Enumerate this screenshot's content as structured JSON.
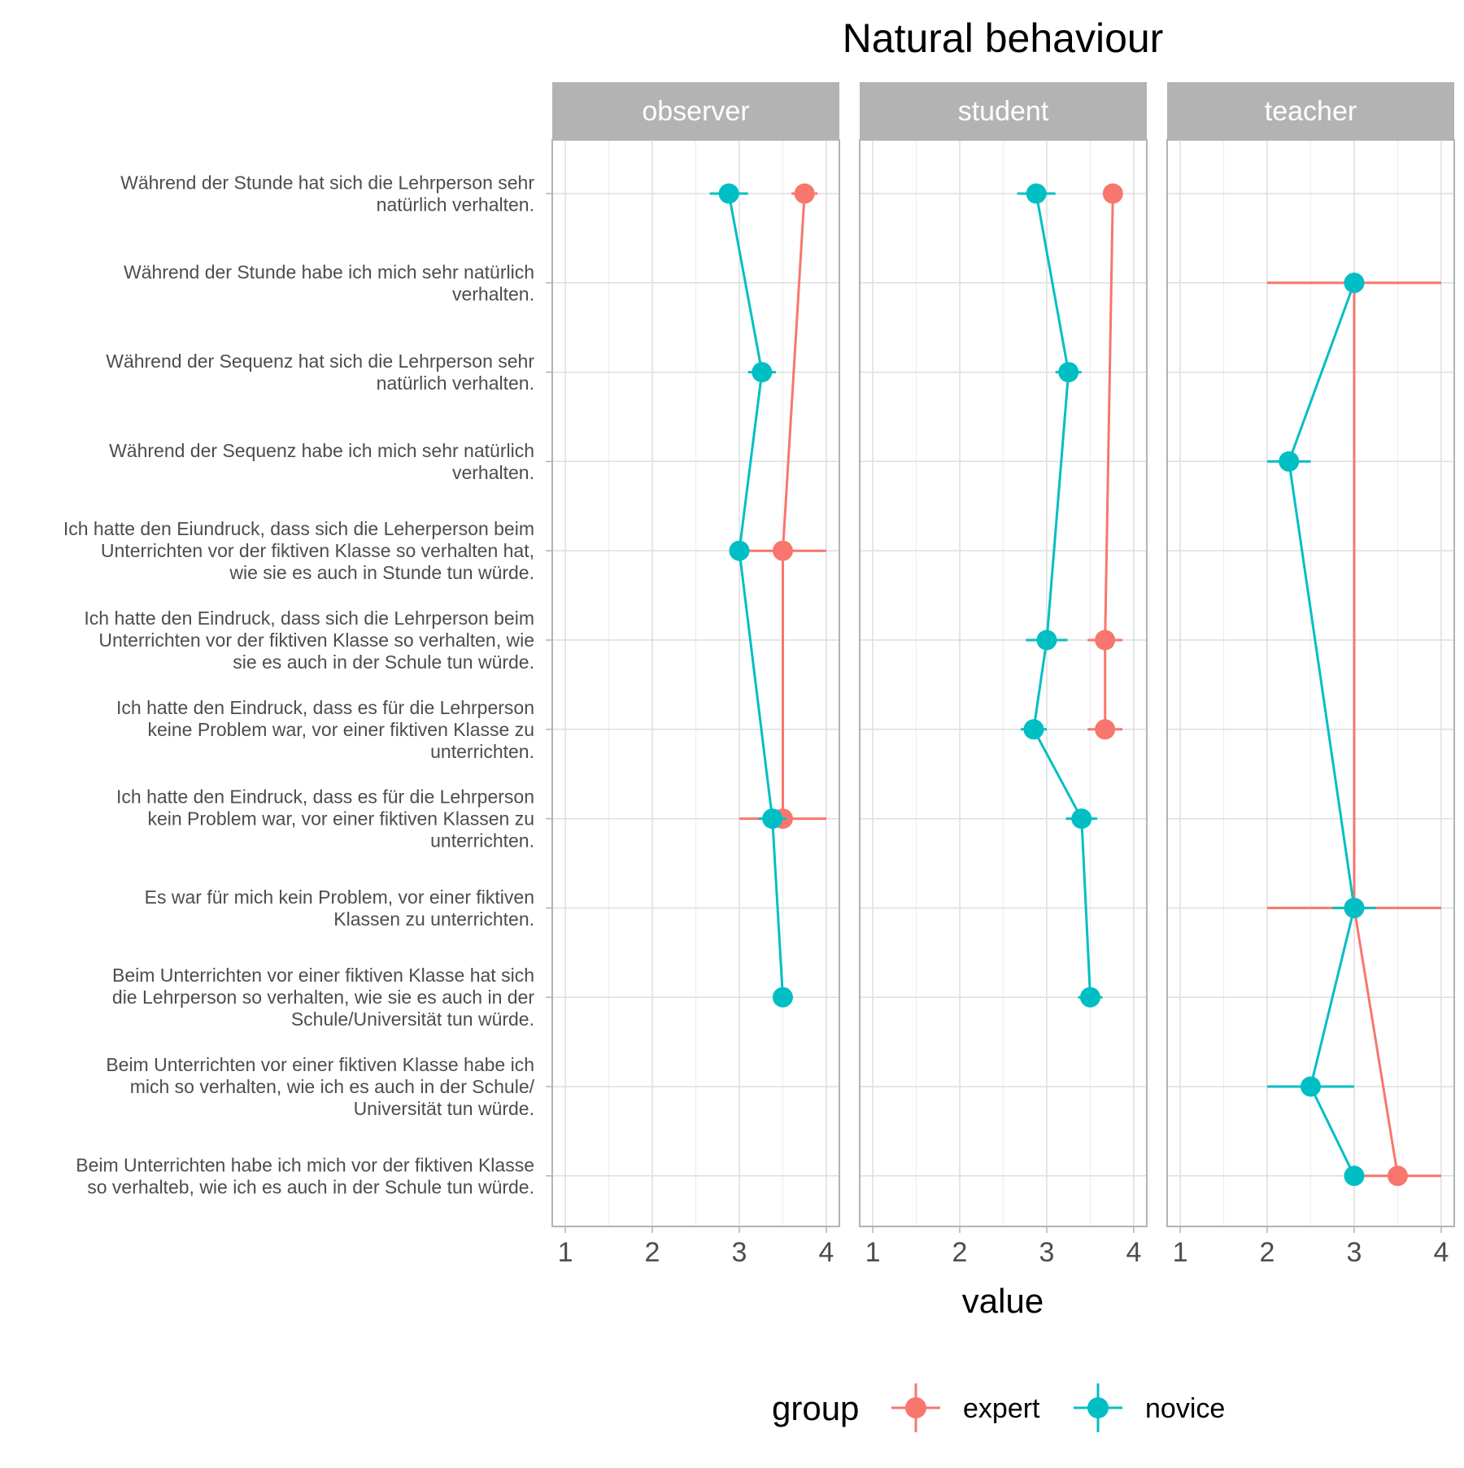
{
  "chart_data": {
    "type": "line",
    "title": "Natural behaviour",
    "xlabel": "value",
    "ylabel": "",
    "xlim": [
      0.85,
      4.15
    ],
    "x_ticks": [
      1,
      2,
      3,
      4
    ],
    "grid": true,
    "legend": {
      "title": "group",
      "position": "bottom"
    },
    "items": [
      "Während der Stunde hat sich die Lehrperson sehr|natürlich verhalten.",
      "Während der Stunde habe ich mich sehr natürlich|verhalten.",
      "Während der Sequenz hat sich die Lehrperson sehr|natürlich verhalten.",
      "Während der Sequenz habe ich mich sehr natürlich|verhalten.",
      "Ich hatte den Eiundruck, dass sich die Leherperson beim|Unterrichten vor der fiktiven Klasse so verhalten hat,|wie sie es auch in Stunde tun würde.",
      "Ich hatte den Eindruck, dass sich die Lehrperson beim|Unterrichten vor der fiktiven Klasse so verhalten, wie|sie es auch in der Schule tun würde.",
      "Ich hatte den Eindruck, dass es für die Lehrperson|keine Problem war, vor einer fiktiven Klasse zu|unterrichten.",
      "Ich hatte den Eindruck, dass es für die Lehrperson|kein Problem war, vor einer fiktiven Klassen zu|unterrichten.",
      "Es war für mich kein Problem, vor einer fiktiven|Klassen zu unterrichten.",
      "Beim Unterrichten vor einer fiktiven Klasse hat sich|die Lehrperson so verhalten, wie sie es auch in der|Schule/Universität tun würde.",
      "Beim Unterrichten vor einer fiktiven Klasse habe ich|mich so verhalten, wie ich es auch in der Schule/|Universität tun würde.",
      "Beim Unterrichten habe ich mich vor der fiktiven Klasse|so verhalteb, wie ich es auch in der Schule tun würde."
    ],
    "facets": [
      {
        "name": "observer",
        "series": [
          {
            "name": "expert",
            "color": "#F8766D",
            "points": [
              {
                "item": 0,
                "x": 3.75,
                "xmin": 3.6,
                "xmax": 3.9
              },
              {
                "item": 4,
                "x": 3.5,
                "xmin": 3.0,
                "xmax": 4.0
              },
              {
                "item": 7,
                "x": 3.5,
                "xmin": 3.0,
                "xmax": 4.0
              }
            ]
          },
          {
            "name": "novice",
            "color": "#00BFC4",
            "points": [
              {
                "item": 0,
                "x": 2.88,
                "xmin": 2.66,
                "xmax": 3.1
              },
              {
                "item": 2,
                "x": 3.26,
                "xmin": 3.1,
                "xmax": 3.42
              },
              {
                "item": 4,
                "x": 3.0,
                "xmin": 2.9,
                "xmax": 3.1
              },
              {
                "item": 7,
                "x": 3.38,
                "xmin": 3.22,
                "xmax": 3.54
              },
              {
                "item": 9,
                "x": 3.5,
                "xmin": 3.4,
                "xmax": 3.6
              }
            ]
          }
        ]
      },
      {
        "name": "student",
        "series": [
          {
            "name": "expert",
            "color": "#F8766D",
            "points": [
              {
                "item": 0,
                "x": 3.76,
                "xmin": 3.66,
                "xmax": 3.86
              },
              {
                "item": 5,
                "x": 3.67,
                "xmin": 3.47,
                "xmax": 3.87
              },
              {
                "item": 6,
                "x": 3.67,
                "xmin": 3.47,
                "xmax": 3.87
              }
            ]
          },
          {
            "name": "novice",
            "color": "#00BFC4",
            "points": [
              {
                "item": 0,
                "x": 2.88,
                "xmin": 2.66,
                "xmax": 3.1
              },
              {
                "item": 2,
                "x": 3.25,
                "xmin": 3.1,
                "xmax": 3.4
              },
              {
                "item": 5,
                "x": 3.0,
                "xmin": 2.76,
                "xmax": 3.24
              },
              {
                "item": 6,
                "x": 2.85,
                "xmin": 2.7,
                "xmax": 3.0
              },
              {
                "item": 7,
                "x": 3.4,
                "xmin": 3.22,
                "xmax": 3.58
              },
              {
                "item": 9,
                "x": 3.5,
                "xmin": 3.36,
                "xmax": 3.64
              }
            ]
          }
        ]
      },
      {
        "name": "teacher",
        "series": [
          {
            "name": "expert",
            "color": "#F8766D",
            "points": [
              {
                "item": 1,
                "x": 3.0,
                "xmin": 2.0,
                "xmax": 4.0
              },
              {
                "item": 8,
                "x": 3.0,
                "xmin": 2.0,
                "xmax": 4.0
              },
              {
                "item": 11,
                "x": 3.5,
                "xmin": 3.0,
                "xmax": 4.0
              }
            ]
          },
          {
            "name": "novice",
            "color": "#00BFC4",
            "points": [
              {
                "item": 1,
                "x": 3.0,
                "xmin": 3.0,
                "xmax": 3.0
              },
              {
                "item": 3,
                "x": 2.25,
                "xmin": 2.0,
                "xmax": 2.5
              },
              {
                "item": 8,
                "x": 3.0,
                "xmin": 2.75,
                "xmax": 3.25
              },
              {
                "item": 10,
                "x": 2.5,
                "xmin": 2.0,
                "xmax": 3.0
              },
              {
                "item": 11,
                "x": 3.0,
                "xmin": 3.0,
                "xmax": 3.0
              }
            ]
          }
        ]
      }
    ]
  }
}
